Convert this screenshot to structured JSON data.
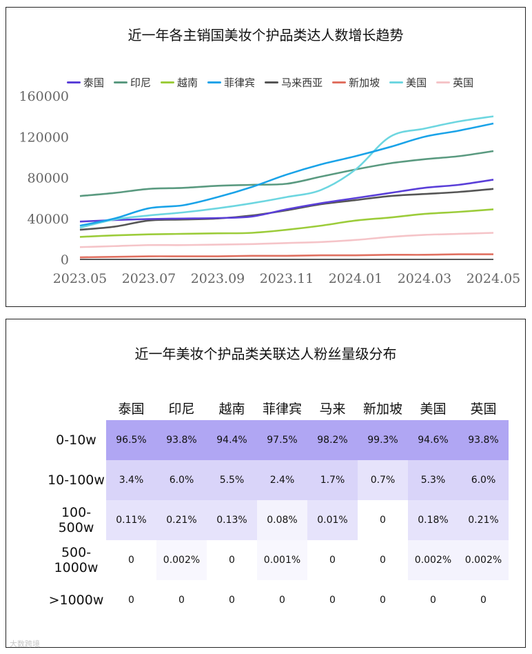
{
  "chart_data": {
    "type": "line",
    "title": "近一年各主销国美妆个护品类达人数增长趋势",
    "x": [
      "2023.05",
      "2023.06",
      "2023.07",
      "2023.08",
      "2023.09",
      "2023.10",
      "2023.11",
      "2023.12",
      "2024.01",
      "2024.02",
      "2024.03",
      "2024.04",
      "2024.05"
    ],
    "xticks": [
      "2023.05",
      "2023.07",
      "2023.09",
      "2023.11",
      "2024.01",
      "2024.03",
      "2024.05"
    ],
    "yticks": [
      "0",
      "40000",
      "80000",
      "120000",
      "160000"
    ],
    "ylim": [
      0,
      160000
    ],
    "legend": "top",
    "grid": false,
    "series": [
      {
        "name": "泰国",
        "color": "#5a3fd8",
        "values": [
          37000,
          38500,
          39500,
          40000,
          40500,
          42000,
          49000,
          55000,
          60000,
          65000,
          70000,
          73000,
          78000
        ]
      },
      {
        "name": "印尼",
        "color": "#5a9a80",
        "values": [
          62000,
          65000,
          69000,
          70000,
          72000,
          73000,
          74000,
          81000,
          88000,
          94000,
          98000,
          101000,
          106000
        ]
      },
      {
        "name": "越南",
        "color": "#9ccc3a",
        "values": [
          22000,
          23500,
          24500,
          25000,
          25500,
          26000,
          29000,
          33000,
          38000,
          41000,
          44500,
          46500,
          49000
        ]
      },
      {
        "name": "菲律宾",
        "color": "#1aa3e8",
        "values": [
          33000,
          40000,
          50000,
          53000,
          61000,
          71000,
          83000,
          93000,
          101000,
          110000,
          120000,
          126000,
          133000
        ]
      },
      {
        "name": "马来西亚",
        "color": "#555555",
        "values": [
          29000,
          32000,
          38000,
          39000,
          40000,
          43000,
          48000,
          54000,
          58000,
          62000,
          64000,
          66000,
          69000
        ]
      },
      {
        "name": "新加坡",
        "color": "#e07060",
        "values": [
          2000,
          2500,
          3000,
          3000,
          3000,
          3500,
          3500,
          4000,
          4000,
          4500,
          4500,
          5000,
          5000
        ]
      },
      {
        "name": "美国",
        "color": "#6dd6e0",
        "values": [
          31000,
          39000,
          43000,
          46000,
          50000,
          55000,
          61000,
          68000,
          88000,
          120000,
          128000,
          135000,
          140000
        ]
      },
      {
        "name": "英国",
        "color": "#f5c4c8",
        "values": [
          12000,
          13000,
          14000,
          14000,
          14500,
          15000,
          16000,
          17000,
          19000,
          22000,
          24000,
          25000,
          26000
        ]
      }
    ]
  },
  "table": {
    "title": "近一年美妆个护品类关联达人粉丝量级分布",
    "columns": [
      "泰国",
      "印尼",
      "越南",
      "菲律宾",
      "马来",
      "新加坡",
      "美国",
      "英国"
    ],
    "rows": [
      {
        "label": "0-10w",
        "cells": [
          "96.5%",
          "93.8%",
          "94.4%",
          "97.5%",
          "98.2%",
          "99.3%",
          "94.6%",
          "93.8%"
        ],
        "colors": [
          "#b0a6f3",
          "#b0a6f3",
          "#b0a6f3",
          "#b0a6f3",
          "#b0a6f3",
          "#b0a6f3",
          "#b0a6f3",
          "#b0a6f3"
        ]
      },
      {
        "label": "10-100w",
        "cells": [
          "3.4%",
          "6.0%",
          "5.5%",
          "2.4%",
          "1.7%",
          "0.7%",
          "5.3%",
          "6.0%"
        ],
        "colors": [
          "#d9d4f9",
          "#d9d4f9",
          "#d9d4f9",
          "#d9d4f9",
          "#d9d4f9",
          "#e6e3fb",
          "#d9d4f9",
          "#d9d4f9"
        ]
      },
      {
        "label": "100-500w",
        "cells": [
          "0.11%",
          "0.21%",
          "0.13%",
          "0.08%",
          "0.01%",
          "0",
          "0.18%",
          "0.21%"
        ],
        "colors": [
          "#e6e3fb",
          "#e6e3fb",
          "#e6e3fb",
          "#f4f3fd",
          "#e6e3fb",
          "#ffffff",
          "#e6e3fb",
          "#e6e3fb"
        ]
      },
      {
        "label": "500-1000w",
        "cells": [
          "0",
          "0.002%",
          "0",
          "0.001%",
          "0",
          "0",
          "0.002%",
          "0.002%"
        ],
        "colors": [
          "#ffffff",
          "#f8f7fe",
          "#ffffff",
          "#f8f7fe",
          "#ffffff",
          "#ffffff",
          "#f4f3fd",
          "#f4f3fd"
        ]
      },
      {
        "label": ">1000w",
        "cells": [
          "0",
          "0",
          "0",
          "0",
          "0",
          "0",
          "0",
          "0"
        ],
        "colors": [
          "#ffffff",
          "#ffffff",
          "#ffffff",
          "#ffffff",
          "#ffffff",
          "#ffffff",
          "#ffffff",
          "#ffffff"
        ]
      }
    ]
  },
  "watermark": "大数跨境"
}
